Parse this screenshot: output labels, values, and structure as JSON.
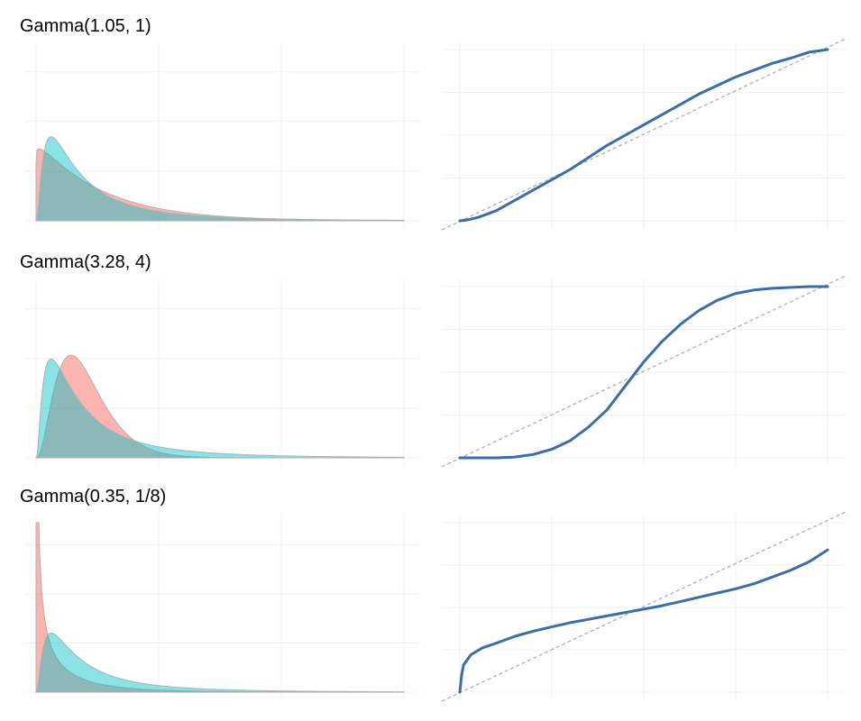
{
  "colors": {
    "gamma_fill": "#f8766d",
    "reference_fill": "#00bfc4",
    "overlap_tint": "#7fa8a8",
    "pp_line": "#3a6ea5",
    "diagonal": "#aaaaaa",
    "grid": "#f0f0f0"
  },
  "chart_data": [
    {
      "title": "Gamma(1.05, 1)",
      "type": "area",
      "shape": 1.05,
      "rate": 1,
      "x_range": [
        0,
        6
      ],
      "y_range": [
        0,
        1.2
      ],
      "reference_density": "empirical (log-normal-like)",
      "pp_curve": {
        "type": "line",
        "x_range": [
          0,
          1
        ],
        "y_range": [
          0,
          1
        ],
        "x": [
          0,
          0.02,
          0.05,
          0.1,
          0.15,
          0.2,
          0.25,
          0.3,
          0.35,
          0.4,
          0.45,
          0.5,
          0.55,
          0.6,
          0.65,
          0.7,
          0.75,
          0.8,
          0.85,
          0.9,
          0.95,
          1
        ],
        "y": [
          0,
          0.005,
          0.02,
          0.06,
          0.12,
          0.18,
          0.24,
          0.3,
          0.37,
          0.44,
          0.5,
          0.56,
          0.62,
          0.68,
          0.74,
          0.79,
          0.84,
          0.88,
          0.92,
          0.95,
          0.985,
          1
        ]
      }
    },
    {
      "title": "Gamma(3.28, 4)",
      "type": "area",
      "shape": 3.28,
      "rate": 4,
      "x_range": [
        0,
        6
      ],
      "y_range": [
        0,
        1.2
      ],
      "reference_density": "empirical (log-normal-like)",
      "pp_curve": {
        "type": "line",
        "x_range": [
          0,
          1
        ],
        "y_range": [
          0,
          1
        ],
        "x": [
          0,
          0.1,
          0.15,
          0.2,
          0.25,
          0.3,
          0.35,
          0.4,
          0.45,
          0.5,
          0.55,
          0.6,
          0.65,
          0.7,
          0.75,
          0.8,
          0.85,
          0.9,
          0.95,
          1
        ],
        "y": [
          0,
          0.0,
          0.005,
          0.02,
          0.05,
          0.1,
          0.18,
          0.28,
          0.42,
          0.56,
          0.68,
          0.78,
          0.86,
          0.92,
          0.96,
          0.98,
          0.99,
          0.995,
          1,
          1
        ]
      }
    },
    {
      "title": "Gamma(0.35, 1/8)",
      "type": "area",
      "shape": 0.35,
      "rate": 0.125,
      "x_range": [
        0,
        6
      ],
      "y_range": [
        0,
        1.2
      ],
      "reference_density": "empirical (log-normal-like)",
      "pp_curve": {
        "type": "line",
        "x_range": [
          0,
          1
        ],
        "y_range": [
          0,
          1
        ],
        "x": [
          0,
          0.005,
          0.01,
          0.03,
          0.06,
          0.1,
          0.15,
          0.2,
          0.25,
          0.3,
          0.35,
          0.4,
          0.45,
          0.5,
          0.55,
          0.6,
          0.65,
          0.7,
          0.75,
          0.8,
          0.85,
          0.9,
          0.95,
          1
        ],
        "y": [
          0,
          0.1,
          0.16,
          0.22,
          0.26,
          0.29,
          0.33,
          0.36,
          0.385,
          0.41,
          0.43,
          0.45,
          0.47,
          0.49,
          0.51,
          0.535,
          0.56,
          0.585,
          0.61,
          0.64,
          0.68,
          0.72,
          0.77,
          0.84
        ]
      }
    }
  ]
}
